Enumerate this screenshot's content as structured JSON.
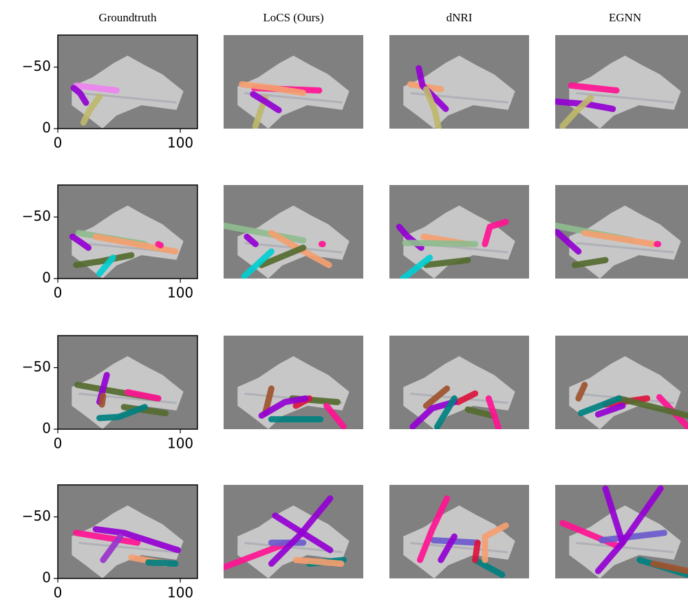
{
  "chart_data": [
    {
      "type": "trajectory",
      "title": "Groundtruth",
      "xlim": [
        0,
        114
      ],
      "ylim": [
        0,
        -76
      ],
      "xticks": [
        0,
        100
      ],
      "yticks": [
        0,
        {
          "value": -50,
          "label": "−50"
        }
      ],
      "series": [
        {
          "color": "#bdb76b",
          "x": [
            21,
            26,
            34
          ],
          "y": [
            -5,
            -15,
            -26
          ]
        },
        {
          "color": "#ee82ee",
          "x": [
            15,
            48
          ],
          "y": [
            -35,
            -31
          ]
        },
        {
          "color": "#9400d3",
          "x": [
            13,
            18,
            23
          ],
          "y": [
            -33,
            -29,
            -21
          ]
        }
      ]
    },
    {
      "type": "trajectory",
      "title": "LoCS (Ours)",
      "xlim": [
        0,
        114
      ],
      "ylim": [
        0,
        -76
      ],
      "series": [
        {
          "color": "#bdb76b",
          "x": [
            26,
            30,
            34
          ],
          "y": [
            -2,
            -14,
            -25
          ]
        },
        {
          "color": "#ff1493",
          "x": [
            25,
            78
          ],
          "y": [
            -33,
            -31
          ]
        },
        {
          "color": "#f4a070",
          "x": [
            15,
            40,
            65
          ],
          "y": [
            -36,
            -33,
            -29
          ]
        },
        {
          "color": "#9400d3",
          "x": [
            24,
            34,
            45
          ],
          "y": [
            -28,
            -22,
            -15
          ]
        }
      ]
    },
    {
      "type": "trajectory",
      "title": "dNRI",
      "xlim": [
        0,
        114
      ],
      "ylim": [
        0,
        -76
      ],
      "series": [
        {
          "color": "#f4a070",
          "x": [
            17,
            42
          ],
          "y": [
            -36,
            -32
          ]
        },
        {
          "color": "#9400d3",
          "x": [
            24,
            27,
            46
          ],
          "y": [
            -49,
            -35,
            -16
          ]
        },
        {
          "color": "#bdb76b",
          "x": [
            30,
            37,
            40
          ],
          "y": [
            -32,
            -15,
            -1
          ]
        }
      ]
    },
    {
      "type": "trajectory",
      "title": "EGNN",
      "xlim": [
        0,
        114
      ],
      "ylim": [
        0,
        -76
      ],
      "series": [
        {
          "color": "#ff1493",
          "x": [
            13,
            50
          ],
          "y": [
            -35,
            -31
          ]
        },
        {
          "color": "#9400d3",
          "x": [
            0,
            25,
            47
          ],
          "y": [
            -22,
            -20,
            -16
          ]
        },
        {
          "color": "#bdb76b",
          "x": [
            6,
            17,
            29
          ],
          "y": [
            -2,
            -14,
            -25
          ]
        }
      ]
    },
    {
      "type": "trajectory",
      "xlim": [
        0,
        114
      ],
      "ylim": [
        0,
        -76
      ],
      "xticks": [
        0,
        100
      ],
      "yticks": [
        0,
        {
          "value": -50,
          "label": "−50"
        }
      ],
      "series": [
        {
          "color": "#8fbc8f",
          "x": [
            17,
            71
          ],
          "y": [
            -37,
            -28
          ]
        },
        {
          "color": "#f4a070",
          "x": [
            31,
            96
          ],
          "y": [
            -34,
            -22
          ]
        },
        {
          "color": "#9400d3",
          "x": [
            12,
            18,
            25
          ],
          "y": [
            -34,
            -30,
            -25
          ]
        },
        {
          "color": "#556b2f",
          "x": [
            15,
            35,
            60
          ],
          "y": [
            -11,
            -14,
            -19
          ]
        },
        {
          "color": "#00ced1",
          "x": [
            34,
            45
          ],
          "y": [
            -4,
            -17
          ]
        },
        {
          "color": "#ff1493",
          "x": [
            82,
            84
          ],
          "y": [
            -28,
            -27
          ]
        }
      ]
    },
    {
      "type": "trajectory",
      "xlim": [
        0,
        114
      ],
      "ylim": [
        0,
        -76
      ],
      "series": [
        {
          "color": "#8fbc8f",
          "x": [
            0,
            65
          ],
          "y": [
            -43,
            -31
          ]
        },
        {
          "color": "#9400d3",
          "x": [
            19,
            26
          ],
          "y": [
            -34,
            -28
          ]
        },
        {
          "color": "#f4a070",
          "x": [
            39,
            60,
            86
          ],
          "y": [
            -37,
            -25,
            -11
          ]
        },
        {
          "color": "#556b2f",
          "x": [
            31,
            65
          ],
          "y": [
            -11,
            -25
          ]
        },
        {
          "color": "#00ced1",
          "x": [
            17,
            39
          ],
          "y": [
            -2,
            -22
          ]
        },
        {
          "color": "#ff1493",
          "x": [
            80,
            81
          ],
          "y": [
            -28,
            -28
          ]
        }
      ]
    },
    {
      "type": "trajectory",
      "xlim": [
        0,
        114
      ],
      "ylim": [
        0,
        -76
      ],
      "series": [
        {
          "color": "#9400d3",
          "x": [
            8,
            15,
            26
          ],
          "y": [
            -42,
            -34,
            -25
          ]
        },
        {
          "color": "#f4a070",
          "x": [
            28,
            64
          ],
          "y": [
            -34,
            -28
          ]
        },
        {
          "color": "#8fbc8f",
          "x": [
            13,
            70
          ],
          "y": [
            -29,
            -28
          ]
        },
        {
          "color": "#556b2f",
          "x": [
            30,
            64
          ],
          "y": [
            -11,
            -15
          ]
        },
        {
          "color": "#00ced1",
          "x": [
            11,
            33
          ],
          "y": [
            0,
            -17
          ]
        },
        {
          "color": "#ff1493",
          "x": [
            78,
            82,
            95
          ],
          "y": [
            -28,
            -42,
            -46
          ]
        }
      ]
    },
    {
      "type": "trajectory",
      "xlim": [
        0,
        114
      ],
      "ylim": [
        0,
        -76
      ],
      "series": [
        {
          "color": "#9400d3",
          "x": [
            0,
            19
          ],
          "y": [
            -39,
            -22
          ]
        },
        {
          "color": "#8fbc8f",
          "x": [
            0,
            63
          ],
          "y": [
            -43,
            -31
          ]
        },
        {
          "color": "#f4a070",
          "x": [
            24,
            80
          ],
          "y": [
            -37,
            -28
          ]
        },
        {
          "color": "#556b2f",
          "x": [
            16,
            41
          ],
          "y": [
            -11,
            -15
          ]
        },
        {
          "color": "#ff1493",
          "x": [
            83,
            84
          ],
          "y": [
            -28,
            -28
          ]
        }
      ]
    },
    {
      "type": "trajectory",
      "xlim": [
        0,
        114
      ],
      "ylim": [
        0,
        -76
      ],
      "xticks": [
        0,
        100
      ],
      "yticks": [
        0,
        {
          "value": -50,
          "label": "−50"
        }
      ],
      "series": [
        {
          "color": "#556b2f",
          "x": [
            16,
            50,
            82
          ],
          "y": [
            -36,
            -30,
            -25
          ]
        },
        {
          "color": "#ff1493",
          "x": [
            57,
            82
          ],
          "y": [
            -30,
            -25
          ]
        },
        {
          "color": "#9400d3",
          "x": [
            34,
            40
          ],
          "y": [
            -22,
            -44
          ]
        },
        {
          "color": "#a0522d",
          "x": [
            36,
            37
          ],
          "y": [
            -20,
            -27
          ]
        },
        {
          "color": "#556b2f",
          "x": [
            54,
            88
          ],
          "y": [
            -18,
            -13
          ]
        },
        {
          "color": "#008080",
          "x": [
            34,
            50,
            71
          ],
          "y": [
            -9,
            -10,
            -18
          ]
        }
      ]
    },
    {
      "type": "trajectory",
      "xlim": [
        0,
        114
      ],
      "ylim": [
        0,
        -76
      ],
      "series": [
        {
          "color": "#a0522d",
          "x": [
            34,
            39
          ],
          "y": [
            -13,
            -33
          ]
        },
        {
          "color": "#556b2f",
          "x": [
            56,
            93
          ],
          "y": [
            -25,
            -22
          ]
        },
        {
          "color": "#dc143c",
          "x": [
            59,
            70
          ],
          "y": [
            -19,
            -25
          ]
        },
        {
          "color": "#9400d3",
          "x": [
            31,
            50,
            67
          ],
          "y": [
            -11,
            -22,
            -25
          ]
        },
        {
          "color": "#008080",
          "x": [
            39,
            79
          ],
          "y": [
            -8,
            -8
          ]
        },
        {
          "color": "#ff1493",
          "x": [
            84,
            98
          ],
          "y": [
            -19,
            -2
          ]
        }
      ]
    },
    {
      "type": "trajectory",
      "xlim": [
        0,
        114
      ],
      "ylim": [
        0,
        -76
      ],
      "series": [
        {
          "color": "#a0522d",
          "x": [
            30,
            47
          ],
          "y": [
            -19,
            -33
          ]
        },
        {
          "color": "#dc143c",
          "x": [
            56,
            70
          ],
          "y": [
            -22,
            -29
          ]
        },
        {
          "color": "#556b2f",
          "x": [
            64,
            84
          ],
          "y": [
            -16,
            -11
          ]
        },
        {
          "color": "#9400d3",
          "x": [
            19,
            35,
            53
          ],
          "y": [
            -2,
            -17,
            -22
          ]
        },
        {
          "color": "#008080",
          "x": [
            39,
            53
          ],
          "y": [
            -2,
            -25
          ]
        },
        {
          "color": "#ff1493",
          "x": [
            81,
            89
          ],
          "y": [
            -25,
            -1
          ]
        }
      ]
    },
    {
      "type": "trajectory",
      "xlim": [
        0,
        114
      ],
      "ylim": [
        0,
        -76
      ],
      "series": [
        {
          "color": "#a0522d",
          "x": [
            19,
            24
          ],
          "y": [
            -25,
            -36
          ]
        },
        {
          "color": "#dc143c",
          "x": [
            41,
            75
          ],
          "y": [
            -20,
            -25
          ]
        },
        {
          "color": "#ff1493",
          "x": [
            85,
            108
          ],
          "y": [
            -26,
            -2
          ]
        },
        {
          "color": "#556b2f",
          "x": [
            52,
            108
          ],
          "y": [
            -25,
            -11
          ]
        },
        {
          "color": "#008080",
          "x": [
            21,
            52
          ],
          "y": [
            -13,
            -25
          ]
        },
        {
          "color": "#9400d3",
          "x": [
            35,
            55
          ],
          "y": [
            -12,
            -19
          ]
        }
      ]
    },
    {
      "type": "trajectory",
      "xlim": [
        0,
        114
      ],
      "ylim": [
        0,
        -76
      ],
      "xticks": [
        0,
        100
      ],
      "yticks": [
        0,
        {
          "value": -50,
          "label": "−50"
        }
      ],
      "series": [
        {
          "color": "#ff1493",
          "x": [
            15,
            65
          ],
          "y": [
            -37,
            -29
          ]
        },
        {
          "color": "#9400d3",
          "x": [
            31,
            54,
            98
          ],
          "y": [
            -40,
            -37,
            -23
          ]
        },
        {
          "color": "#f4a070",
          "x": [
            60,
            88
          ],
          "y": [
            -17,
            -12
          ]
        },
        {
          "color": "#008080",
          "x": [
            74,
            96
          ],
          "y": [
            -13,
            -12
          ]
        },
        {
          "color": "#9932cc",
          "x": [
            37,
            51
          ],
          "y": [
            -15,
            -34
          ]
        }
      ]
    },
    {
      "type": "trajectory",
      "xlim": [
        0,
        114
      ],
      "ylim": [
        0,
        -76
      ],
      "series": [
        {
          "color": "#ff1493",
          "x": [
            0,
            53
          ],
          "y": [
            -9,
            -29
          ]
        },
        {
          "color": "#6a5acd",
          "x": [
            39,
            65
          ],
          "y": [
            -29,
            -29
          ]
        },
        {
          "color": "#9400d3",
          "x": [
            42,
            87
          ],
          "y": [
            -51,
            -23
          ]
        },
        {
          "color": "#9400d3",
          "x": [
            39,
            62,
            87
          ],
          "y": [
            -12,
            -35,
            -65
          ]
        },
        {
          "color": "#008080",
          "x": [
            70,
            98
          ],
          "y": [
            -12,
            -15
          ]
        },
        {
          "color": "#f4a070",
          "x": [
            59,
            96
          ],
          "y": [
            -15,
            -12
          ]
        }
      ]
    },
    {
      "type": "trajectory",
      "xlim": [
        0,
        114
      ],
      "ylim": [
        0,
        -76
      ],
      "series": [
        {
          "color": "#6a5acd",
          "x": [
            36,
            72
          ],
          "y": [
            -31,
            -29
          ]
        },
        {
          "color": "#008080",
          "x": [
            70,
            92
          ],
          "y": [
            -15,
            -3
          ]
        },
        {
          "color": "#dc143c",
          "x": [
            70,
            72
          ],
          "y": [
            -15,
            -29
          ]
        },
        {
          "color": "#ff1493",
          "x": [
            25,
            35,
            47
          ],
          "y": [
            -15,
            -40,
            -65
          ]
        },
        {
          "color": "#9400d3",
          "x": [
            42,
            53
          ],
          "y": [
            -15,
            -34
          ]
        },
        {
          "color": "#f4a070",
          "x": [
            78,
            78,
            95
          ],
          "y": [
            -15,
            -34,
            -43
          ]
        }
      ]
    },
    {
      "type": "trajectory",
      "xlim": [
        0,
        114
      ],
      "ylim": [
        0,
        -76
      ],
      "series": [
        {
          "color": "#ff1493",
          "x": [
            6,
            52
          ],
          "y": [
            -45,
            -26
          ]
        },
        {
          "color": "#6a5acd",
          "x": [
            38,
            89
          ],
          "y": [
            -31,
            -37
          ]
        },
        {
          "color": "#9400d3",
          "x": [
            41,
            55,
            35
          ],
          "y": [
            -73,
            -29,
            -6
          ]
        },
        {
          "color": "#9400d3",
          "x": [
            55,
            86
          ],
          "y": [
            -29,
            -73
          ]
        },
        {
          "color": "#008080",
          "x": [
            69,
            108
          ],
          "y": [
            -15,
            -3
          ]
        },
        {
          "color": "#a0522d",
          "x": [
            80,
            108
          ],
          "y": [
            -12,
            -6
          ]
        }
      ]
    }
  ]
}
